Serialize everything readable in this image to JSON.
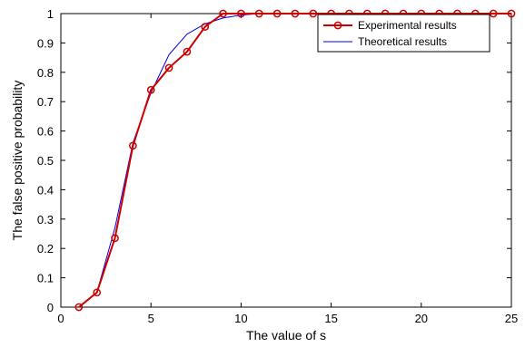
{
  "chart_data": {
    "type": "line",
    "xlabel": "The value of s",
    "ylabel": "The false positive probability",
    "xlim": [
      0,
      25
    ],
    "ylim": [
      0,
      1
    ],
    "xticks": [
      "0",
      "5",
      "10",
      "15",
      "20",
      "25"
    ],
    "yticks": [
      "0",
      "0.1",
      "0.2",
      "0.3",
      "0.4",
      "0.5",
      "0.6",
      "0.7",
      "0.8",
      "0.9",
      "1"
    ],
    "grid": false,
    "legend_position": "top-right",
    "series": [
      {
        "name": "Experimental results",
        "color": "#cc0000",
        "marker": "circle",
        "x": [
          1,
          2,
          3,
          4,
          5,
          6,
          7,
          8,
          9,
          10,
          11,
          12,
          13,
          14,
          15,
          16,
          17,
          18,
          19,
          20,
          21,
          22,
          23,
          24,
          25
        ],
        "y": [
          0.0,
          0.05,
          0.235,
          0.55,
          0.74,
          0.815,
          0.87,
          0.955,
          1,
          1,
          1,
          1,
          1,
          1,
          1,
          1,
          1,
          1,
          1,
          1,
          1,
          1,
          1,
          1,
          1
        ]
      },
      {
        "name": "Theoretical results",
        "color": "#0000ee",
        "marker": "none",
        "x": [
          1,
          2,
          3,
          4,
          5,
          6,
          7,
          8,
          9,
          10,
          11,
          12,
          13,
          14,
          15,
          16,
          17,
          18,
          19,
          20,
          21,
          22,
          23,
          24,
          25
        ],
        "y": [
          0.0,
          0.05,
          0.27,
          0.56,
          0.73,
          0.86,
          0.93,
          0.965,
          0.985,
          0.995,
          1,
          1,
          1,
          1,
          1,
          1,
          1,
          1,
          1,
          1,
          1,
          1,
          1,
          1,
          1
        ]
      }
    ]
  }
}
